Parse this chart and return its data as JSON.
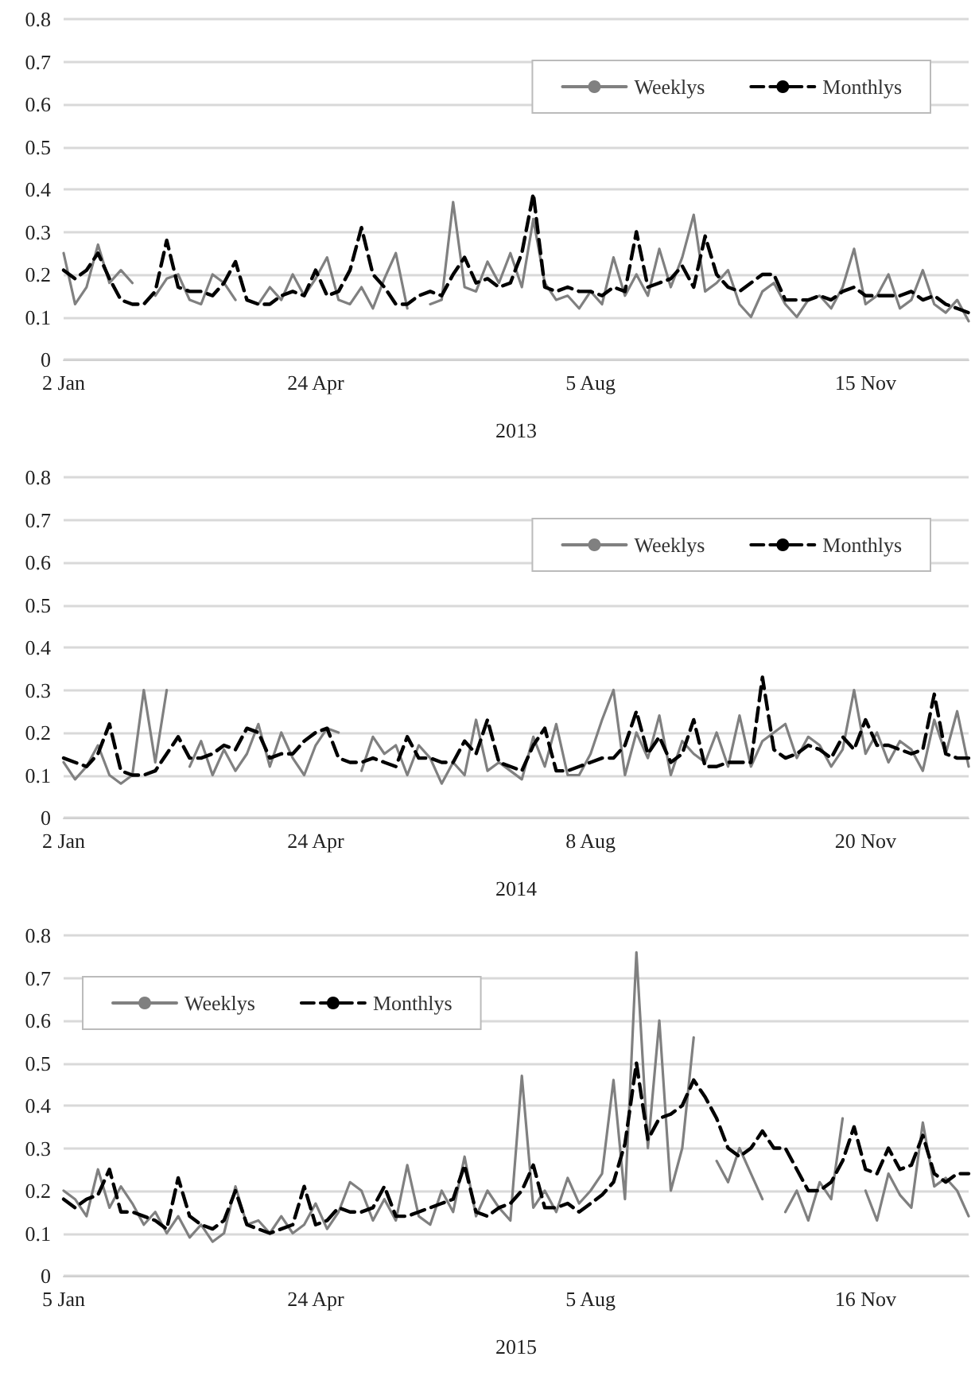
{
  "chart_data": [
    {
      "type": "line",
      "xlabel": "2013",
      "categories": [
        "2 Jan",
        null,
        null,
        null,
        null,
        null,
        null,
        null,
        null,
        null,
        null,
        null,
        null,
        null,
        null,
        null,
        null,
        null,
        null,
        null,
        null,
        null,
        "24 Apr",
        null,
        null,
        null,
        null,
        null,
        null,
        null,
        null,
        null,
        null,
        null,
        null,
        null,
        null,
        null,
        null,
        null,
        null,
        null,
        null,
        null,
        null,
        null,
        "5 Aug",
        null,
        null,
        null,
        null,
        null,
        null,
        null,
        null,
        null,
        null,
        null,
        null,
        null,
        null,
        null,
        null,
        null,
        null,
        null,
        null,
        null,
        null,
        null,
        "15 Nov",
        null,
        null,
        null,
        null,
        null,
        null,
        null,
        null,
        null
      ],
      "ylim": [
        0,
        0.8
      ],
      "yticks": [
        0,
        0.1,
        0.2,
        0.3,
        0.4,
        0.5,
        0.6,
        0.7,
        0.8
      ],
      "grid": "y",
      "legend": "top right",
      "marker": "none",
      "series": [
        {
          "name": "Weeklys",
          "color": "#808080",
          "line_style": "solid",
          "values": [
            0.25,
            0.13,
            0.17,
            0.27,
            0.18,
            0.21,
            0.18,
            null,
            0.15,
            0.19,
            0.2,
            0.14,
            0.13,
            0.2,
            0.18,
            0.14,
            null,
            0.13,
            0.17,
            0.14,
            0.2,
            0.15,
            0.19,
            0.24,
            0.14,
            0.13,
            0.17,
            0.12,
            0.19,
            0.25,
            0.12,
            null,
            0.13,
            0.14,
            0.37,
            0.17,
            0.16,
            0.23,
            0.18,
            0.25,
            0.17,
            0.33,
            0.18,
            0.14,
            0.15,
            0.12,
            0.16,
            0.13,
            0.24,
            0.15,
            0.2,
            0.15,
            0.26,
            0.17,
            0.24,
            0.34,
            0.16,
            0.18,
            0.21,
            0.13,
            0.1,
            0.16,
            0.18,
            0.13,
            0.1,
            0.14,
            0.15,
            0.12,
            0.17,
            0.26,
            0.13,
            0.15,
            0.2,
            0.12,
            0.14,
            0.21,
            0.13,
            0.11,
            0.14,
            0.09
          ]
        },
        {
          "name": "Monthlys",
          "color": "#000000",
          "line_style": "dashed",
          "values": [
            0.21,
            0.19,
            0.21,
            0.25,
            0.19,
            0.14,
            0.13,
            0.13,
            0.16,
            0.28,
            0.17,
            0.16,
            0.16,
            0.15,
            0.18,
            0.23,
            0.14,
            0.13,
            0.13,
            0.15,
            0.16,
            0.15,
            0.21,
            0.15,
            0.16,
            0.21,
            0.31,
            0.2,
            0.17,
            0.13,
            0.13,
            0.15,
            0.16,
            0.15,
            0.2,
            0.24,
            0.18,
            0.19,
            0.17,
            0.18,
            0.25,
            0.39,
            0.17,
            0.16,
            0.17,
            0.16,
            0.16,
            0.15,
            0.17,
            0.16,
            0.3,
            0.17,
            0.18,
            0.19,
            0.22,
            0.17,
            0.29,
            0.2,
            0.17,
            0.16,
            0.18,
            0.2,
            0.2,
            0.14,
            0.14,
            0.14,
            0.15,
            0.14,
            0.16,
            0.17,
            0.15,
            0.15,
            0.15,
            0.15,
            0.16,
            0.14,
            0.15,
            0.13,
            0.12,
            0.11
          ]
        }
      ]
    },
    {
      "type": "line",
      "xlabel": "2014",
      "categories": [
        "2 Jan",
        null,
        null,
        null,
        null,
        null,
        null,
        null,
        null,
        null,
        null,
        null,
        null,
        null,
        null,
        null,
        null,
        null,
        null,
        null,
        null,
        null,
        "24 Apr",
        null,
        null,
        null,
        null,
        null,
        null,
        null,
        null,
        null,
        null,
        null,
        null,
        null,
        null,
        null,
        null,
        null,
        null,
        null,
        null,
        null,
        null,
        null,
        "8 Aug",
        null,
        null,
        null,
        null,
        null,
        null,
        null,
        null,
        null,
        null,
        null,
        null,
        null,
        null,
        null,
        null,
        null,
        null,
        null,
        null,
        null,
        null,
        null,
        "20 Nov",
        null,
        null,
        null,
        null,
        null,
        null,
        null,
        null,
        null
      ],
      "ylim": [
        0,
        0.8
      ],
      "yticks": [
        0,
        0.1,
        0.2,
        0.3,
        0.4,
        0.5,
        0.6,
        0.7,
        0.8
      ],
      "grid": "y",
      "legend": "top right",
      "marker": "none",
      "series": [
        {
          "name": "Weeklys",
          "color": "#808080",
          "line_style": "solid",
          "values": [
            0.13,
            0.09,
            0.12,
            0.17,
            0.1,
            0.08,
            0.1,
            0.3,
            0.13,
            0.3,
            null,
            0.12,
            0.18,
            0.1,
            0.16,
            0.11,
            0.15,
            0.22,
            0.12,
            0.2,
            0.14,
            0.1,
            0.17,
            0.21,
            0.2,
            null,
            0.11,
            0.19,
            0.15,
            0.17,
            0.1,
            0.17,
            0.14,
            0.08,
            0.13,
            0.1,
            0.23,
            0.11,
            0.13,
            0.11,
            0.09,
            0.19,
            0.12,
            0.22,
            0.1,
            0.1,
            0.15,
            0.23,
            0.3,
            0.1,
            0.2,
            0.14,
            0.24,
            0.1,
            0.18,
            0.15,
            0.13,
            0.2,
            0.12,
            0.24,
            0.12,
            0.18,
            0.2,
            0.22,
            0.14,
            0.19,
            0.17,
            0.12,
            0.16,
            0.3,
            0.15,
            0.2,
            0.13,
            0.18,
            0.16,
            0.11,
            0.23,
            0.15,
            0.25,
            0.12
          ]
        },
        {
          "name": "Monthlys",
          "color": "#000000",
          "line_style": "dashed",
          "values": [
            0.14,
            0.13,
            0.12,
            0.15,
            0.22,
            0.11,
            0.1,
            0.1,
            0.11,
            0.15,
            0.19,
            0.14,
            0.14,
            0.15,
            0.17,
            0.16,
            0.21,
            0.2,
            0.14,
            0.15,
            0.15,
            0.18,
            0.2,
            0.21,
            0.14,
            0.13,
            0.13,
            0.14,
            0.13,
            0.12,
            0.19,
            0.14,
            0.14,
            0.13,
            0.13,
            0.18,
            0.15,
            0.23,
            0.13,
            0.12,
            0.11,
            0.17,
            0.21,
            0.11,
            0.11,
            0.12,
            0.13,
            0.14,
            0.14,
            0.17,
            0.25,
            0.15,
            0.19,
            0.13,
            0.15,
            0.23,
            0.12,
            0.12,
            0.13,
            0.13,
            0.13,
            0.33,
            0.16,
            0.14,
            0.15,
            0.17,
            0.16,
            0.14,
            0.19,
            0.16,
            0.23,
            0.17,
            0.17,
            0.16,
            0.15,
            0.16,
            0.29,
            0.15,
            0.14,
            0.14
          ]
        }
      ]
    },
    {
      "type": "line",
      "xlabel": "2015",
      "categories": [
        "5 Jan",
        null,
        null,
        null,
        null,
        null,
        null,
        null,
        null,
        null,
        null,
        null,
        null,
        null,
        null,
        null,
        null,
        null,
        null,
        null,
        null,
        null,
        "24 Apr",
        null,
        null,
        null,
        null,
        null,
        null,
        null,
        null,
        null,
        null,
        null,
        null,
        null,
        null,
        null,
        null,
        null,
        null,
        null,
        null,
        null,
        null,
        null,
        "5 Aug",
        null,
        null,
        null,
        null,
        null,
        null,
        null,
        null,
        null,
        null,
        null,
        null,
        null,
        null,
        null,
        null,
        null,
        null,
        null,
        null,
        null,
        null,
        null,
        "16 Nov",
        null,
        null,
        null,
        null,
        null,
        null,
        null,
        null,
        null
      ],
      "ylim": [
        0,
        0.8
      ],
      "yticks": [
        0,
        0.1,
        0.2,
        0.3,
        0.4,
        0.5,
        0.6,
        0.7,
        0.8
      ],
      "grid": "y",
      "legend": "top left",
      "marker": "none",
      "series": [
        {
          "name": "Weeklys",
          "color": "#808080",
          "line_style": "solid",
          "values": [
            0.2,
            0.18,
            0.14,
            0.25,
            0.16,
            0.21,
            0.17,
            0.12,
            0.15,
            0.1,
            0.14,
            0.09,
            0.12,
            0.08,
            0.1,
            0.21,
            0.12,
            0.13,
            0.1,
            0.14,
            0.1,
            0.12,
            0.17,
            0.11,
            0.15,
            0.22,
            0.2,
            0.13,
            0.18,
            0.13,
            0.26,
            0.14,
            0.12,
            0.2,
            0.15,
            0.28,
            0.14,
            0.2,
            0.16,
            0.13,
            0.47,
            0.16,
            0.2,
            0.15,
            0.23,
            0.17,
            0.2,
            0.24,
            0.46,
            0.18,
            0.76,
            0.3,
            0.6,
            0.2,
            0.3,
            0.56,
            null,
            0.27,
            0.22,
            0.3,
            0.24,
            0.18,
            null,
            0.15,
            0.2,
            0.13,
            0.22,
            0.18,
            0.37,
            null,
            0.2,
            0.13,
            0.24,
            0.19,
            0.16,
            0.36,
            0.21,
            0.23,
            0.2,
            0.14
          ]
        },
        {
          "name": "Monthlys",
          "color": "#000000",
          "line_style": "dashed",
          "values": [
            0.18,
            0.16,
            0.18,
            0.19,
            0.25,
            0.15,
            0.15,
            0.14,
            0.13,
            0.11,
            0.23,
            0.14,
            0.12,
            0.11,
            0.13,
            0.2,
            0.12,
            0.11,
            0.1,
            0.11,
            0.12,
            0.21,
            0.12,
            0.13,
            0.16,
            0.15,
            0.15,
            0.16,
            0.21,
            0.14,
            0.14,
            0.15,
            0.16,
            0.17,
            0.18,
            0.26,
            0.15,
            0.14,
            0.16,
            0.17,
            0.2,
            0.26,
            0.16,
            0.16,
            0.17,
            0.15,
            0.17,
            0.19,
            0.22,
            0.31,
            0.5,
            0.32,
            0.37,
            0.38,
            0.4,
            0.46,
            0.42,
            0.37,
            0.3,
            0.28,
            0.3,
            0.34,
            0.3,
            0.3,
            0.25,
            0.2,
            0.2,
            0.22,
            0.27,
            0.35,
            0.25,
            0.24,
            0.3,
            0.25,
            0.26,
            0.33,
            0.24,
            0.22,
            0.24,
            0.24
          ]
        }
      ]
    }
  ]
}
